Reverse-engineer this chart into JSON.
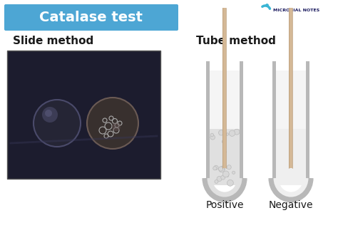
{
  "title": "Catalase test",
  "title_bg_color": "#4da6d4",
  "title_text_color": "#ffffff",
  "slide_method_label": "Slide method",
  "tube_method_label": "Tube method",
  "positive_label": "Positive",
  "negative_label": "Negative",
  "bg_color": "#ffffff",
  "tube_outer_color": "#b8b8b8",
  "tube_inner_color": "#f5f5f5",
  "tube_fill_color": "#e0e0e0",
  "stick_color": "#d4b896",
  "bubble_color": "#e8e8e8",
  "logo_text": "MICROBIAL NOTES",
  "logo_color": "#3ab5d4",
  "slide_bg_color": "#1c1c2e",
  "slide_edge_color": "#555555"
}
